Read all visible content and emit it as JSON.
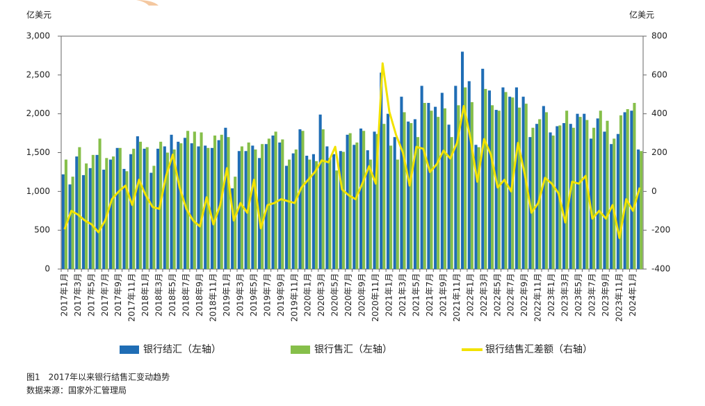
{
  "chart_data": {
    "type": "bar",
    "title": "图1　2017年以来银行结售汇变动趋势",
    "source": "数据来源：国家外汇管理局",
    "y_unit": "亿美元",
    "y2_unit": "亿美元",
    "categories": [
      "2017年1月",
      null,
      "2017年3月",
      null,
      "2017年5月",
      null,
      "2017年7月",
      null,
      "2017年9月",
      null,
      "2017年11月",
      null,
      "2018年1月",
      null,
      "2018年3月",
      null,
      "2018年5月",
      null,
      "2018年7月",
      null,
      "2018年9月",
      null,
      "2018年11月",
      null,
      "2019年1月",
      null,
      "2019年3月",
      null,
      "2019年5月",
      null,
      "2019年7月",
      null,
      "2019年9月",
      null,
      "2019年11月",
      null,
      "2020年1月",
      null,
      "2020年3月",
      null,
      "2020年5月",
      null,
      "2020年7月",
      null,
      "2020年9月",
      null,
      "2020年11月",
      null,
      "2021年1月",
      null,
      "2021年3月",
      null,
      "2021年5月",
      null,
      "2021年7月",
      null,
      "2021年9月",
      null,
      "2021年11月",
      null,
      "2022年1月",
      null,
      "2022年3月",
      null,
      "2022年5月",
      null,
      "2022年7月",
      null,
      "2022年9月",
      null,
      "2022年11月",
      null,
      "2023年1月",
      null,
      "2023年3月",
      null,
      "2023年5月",
      null,
      "2023年7月",
      null,
      "2023年9月",
      null,
      "2023年11月",
      null,
      "2024年1月",
      null
    ],
    "series": [
      {
        "name": "银行结汇（左轴）",
        "type": "bar",
        "color": "#1f6db5",
        "values": [
          1220,
          1090,
          1450,
          1210,
          1300,
          1470,
          1280,
          1410,
          1560,
          1290,
          1480,
          1710,
          1550,
          1240,
          1550,
          1580,
          1730,
          1640,
          1690,
          1620,
          1580,
          1590,
          1560,
          1660,
          1820,
          1040,
          1520,
          1520,
          1590,
          1430,
          1610,
          1720,
          1630,
          1330,
          1490,
          1800,
          1460,
          1480,
          1990,
          1580,
          1480,
          1520,
          1730,
          1600,
          1810,
          1530,
          1770,
          2530,
          2000,
          1700,
          2220,
          1900,
          1930,
          2360,
          2140,
          2090,
          2270,
          1860,
          2360,
          2800,
          2420,
          1600,
          2580,
          2300,
          2050,
          2340,
          2220,
          2340,
          2220,
          1700,
          1870,
          2100,
          1760,
          1840,
          1880,
          1870,
          2000,
          2000,
          1680,
          1940,
          1770,
          1610,
          1740,
          2020,
          2040,
          1540
        ]
      },
      {
        "name": "银行售汇（左轴）",
        "type": "bar",
        "color": "#86bf4a",
        "values": [
          1410,
          1190,
          1570,
          1360,
          1470,
          1680,
          1430,
          1450,
          1560,
          1260,
          1550,
          1640,
          1570,
          1330,
          1640,
          1500,
          1540,
          1620,
          1780,
          1770,
          1760,
          1560,
          1720,
          1730,
          1700,
          1190,
          1580,
          1630,
          1540,
          1610,
          1680,
          1770,
          1670,
          1410,
          1540,
          1780,
          1410,
          1390,
          1800,
          1430,
          1270,
          1510,
          1750,
          1630,
          1780,
          1410,
          1740,
          1870,
          1590,
          1410,
          2020,
          1880,
          1700,
          2140,
          2040,
          1960,
          2070,
          1700,
          2110,
          2340,
          2150,
          1570,
          2320,
          2110,
          2040,
          2280,
          2210,
          2080,
          2130,
          1820,
          1930,
          2020,
          1720,
          1850,
          2040,
          1820,
          1960,
          1920,
          1820,
          2040,
          1910,
          1680,
          1980,
          2060,
          2140,
          1520
        ]
      },
      {
        "name": "银行结售汇差额（右轴）",
        "type": "line",
        "axis": "y2",
        "color": "#f2e200",
        "values": [
          -195,
          -100,
          -120,
          -150,
          -170,
          -210,
          -150,
          -40,
          0,
          30,
          -70,
          60,
          -20,
          -80,
          -90,
          80,
          190,
          20,
          -90,
          -150,
          -180,
          -30,
          -170,
          -70,
          120,
          -150,
          -60,
          -110,
          60,
          -190,
          -70,
          -60,
          -40,
          -50,
          -60,
          20,
          60,
          100,
          160,
          150,
          230,
          10,
          -20,
          -40,
          40,
          130,
          40,
          660,
          410,
          290,
          200,
          30,
          230,
          220,
          100,
          140,
          210,
          170,
          250,
          440,
          270,
          50,
          270,
          190,
          20,
          60,
          0,
          250,
          90,
          -110,
          -60,
          70,
          40,
          -10,
          -160,
          50,
          40,
          80,
          -140,
          -100,
          -140,
          -70,
          -240,
          -40,
          -100,
          20
        ]
      }
    ],
    "ylim": [
      0,
      3000
    ],
    "yticks": [
      0,
      500,
      {
        "value": 1000,
        "label": "1,000"
      },
      {
        "value": 1500,
        "label": "1,500"
      },
      {
        "value": 2000,
        "label": "2,000"
      },
      {
        "value": 2500,
        "label": "2,500"
      },
      {
        "value": 3000,
        "label": "3,000"
      }
    ],
    "y2lim": [
      -400,
      800
    ],
    "y2ticks": [
      -400,
      -200,
      0,
      200,
      400,
      600,
      800
    ]
  }
}
